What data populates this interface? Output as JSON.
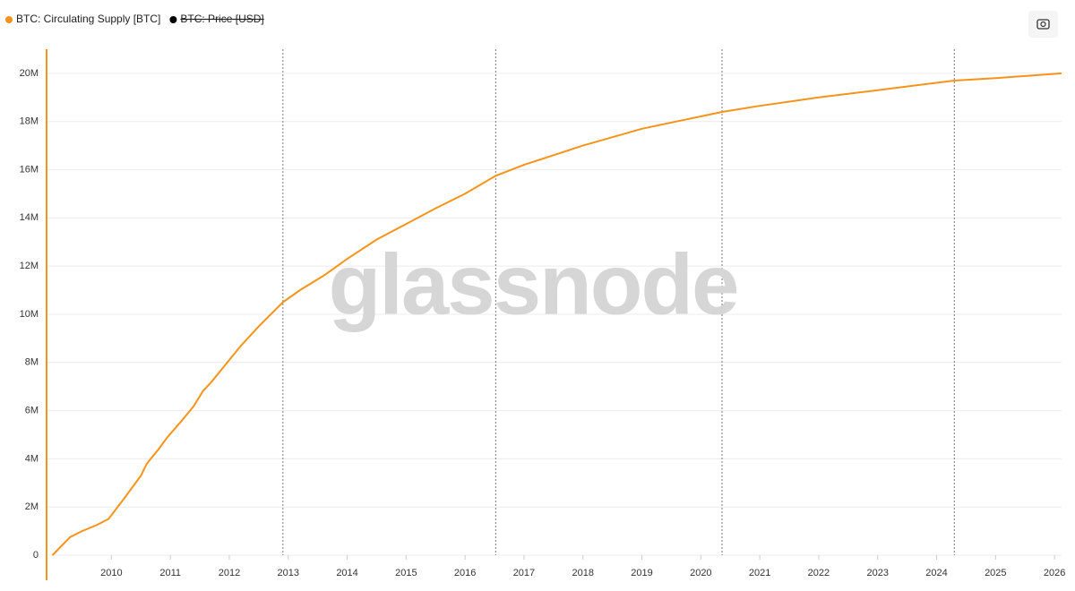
{
  "chart_data": {
    "type": "line",
    "watermark": "glassnode",
    "x": [
      2009.0,
      2009.3,
      2009.5,
      2009.75,
      2009.95,
      2010.2,
      2010.5,
      2010.6,
      2010.8,
      2010.95,
      2011.2,
      2011.4,
      2011.55,
      2011.7,
      2011.9,
      2012.2,
      2012.5,
      2012.91,
      2013.2,
      2013.6,
      2014.0,
      2014.5,
      2015.0,
      2015.5,
      2016.0,
      2016.52,
      2017.0,
      2018.0,
      2019.0,
      2020.36,
      2021.0,
      2022.0,
      2023.0,
      2024.3,
      2025.0,
      2026.12
    ],
    "series": [
      {
        "name": "BTC: Circulating Supply [BTC]",
        "color": "#f7931a",
        "values": [
          0,
          750000,
          1000000,
          1250000,
          1500000,
          2300000,
          3300000,
          3800000,
          4400000,
          4900000,
          5600000,
          6200000,
          6800000,
          7200000,
          7800000,
          8700000,
          9500000,
          10500000,
          11000000,
          11600000,
          12300000,
          13100000,
          13750000,
          14400000,
          15000000,
          15750000,
          16200000,
          17000000,
          17700000,
          18400000,
          18650000,
          19000000,
          19300000,
          19700000,
          19800000,
          20000000
        ]
      }
    ],
    "hidden_series": [
      {
        "name": "BTC: Price [USD]",
        "color": "#000000"
      }
    ],
    "halvings": [
      2012.91,
      2016.52,
      2020.36,
      2024.3
    ],
    "xlim": [
      2008.9,
      2026.12
    ],
    "xticks": [
      2010,
      2011,
      2012,
      2013,
      2014,
      2015,
      2016,
      2017,
      2018,
      2019,
      2020,
      2021,
      2022,
      2023,
      2024,
      2025,
      2026
    ],
    "ylim": [
      0,
      21000000
    ],
    "yticks": [
      0,
      {
        "value": 2000000,
        "label": "2M"
      },
      {
        "value": 4000000,
        "label": "4M"
      },
      {
        "value": 6000000,
        "label": "6M"
      },
      {
        "value": 8000000,
        "label": "8M"
      },
      {
        "value": 10000000,
        "label": "10M"
      },
      {
        "value": 12000000,
        "label": "12M"
      },
      {
        "value": 14000000,
        "label": "14M"
      },
      {
        "value": 16000000,
        "label": "16M"
      },
      {
        "value": 18000000,
        "label": "18M"
      },
      {
        "value": 20000000,
        "label": "20M"
      }
    ],
    "grid": true
  }
}
